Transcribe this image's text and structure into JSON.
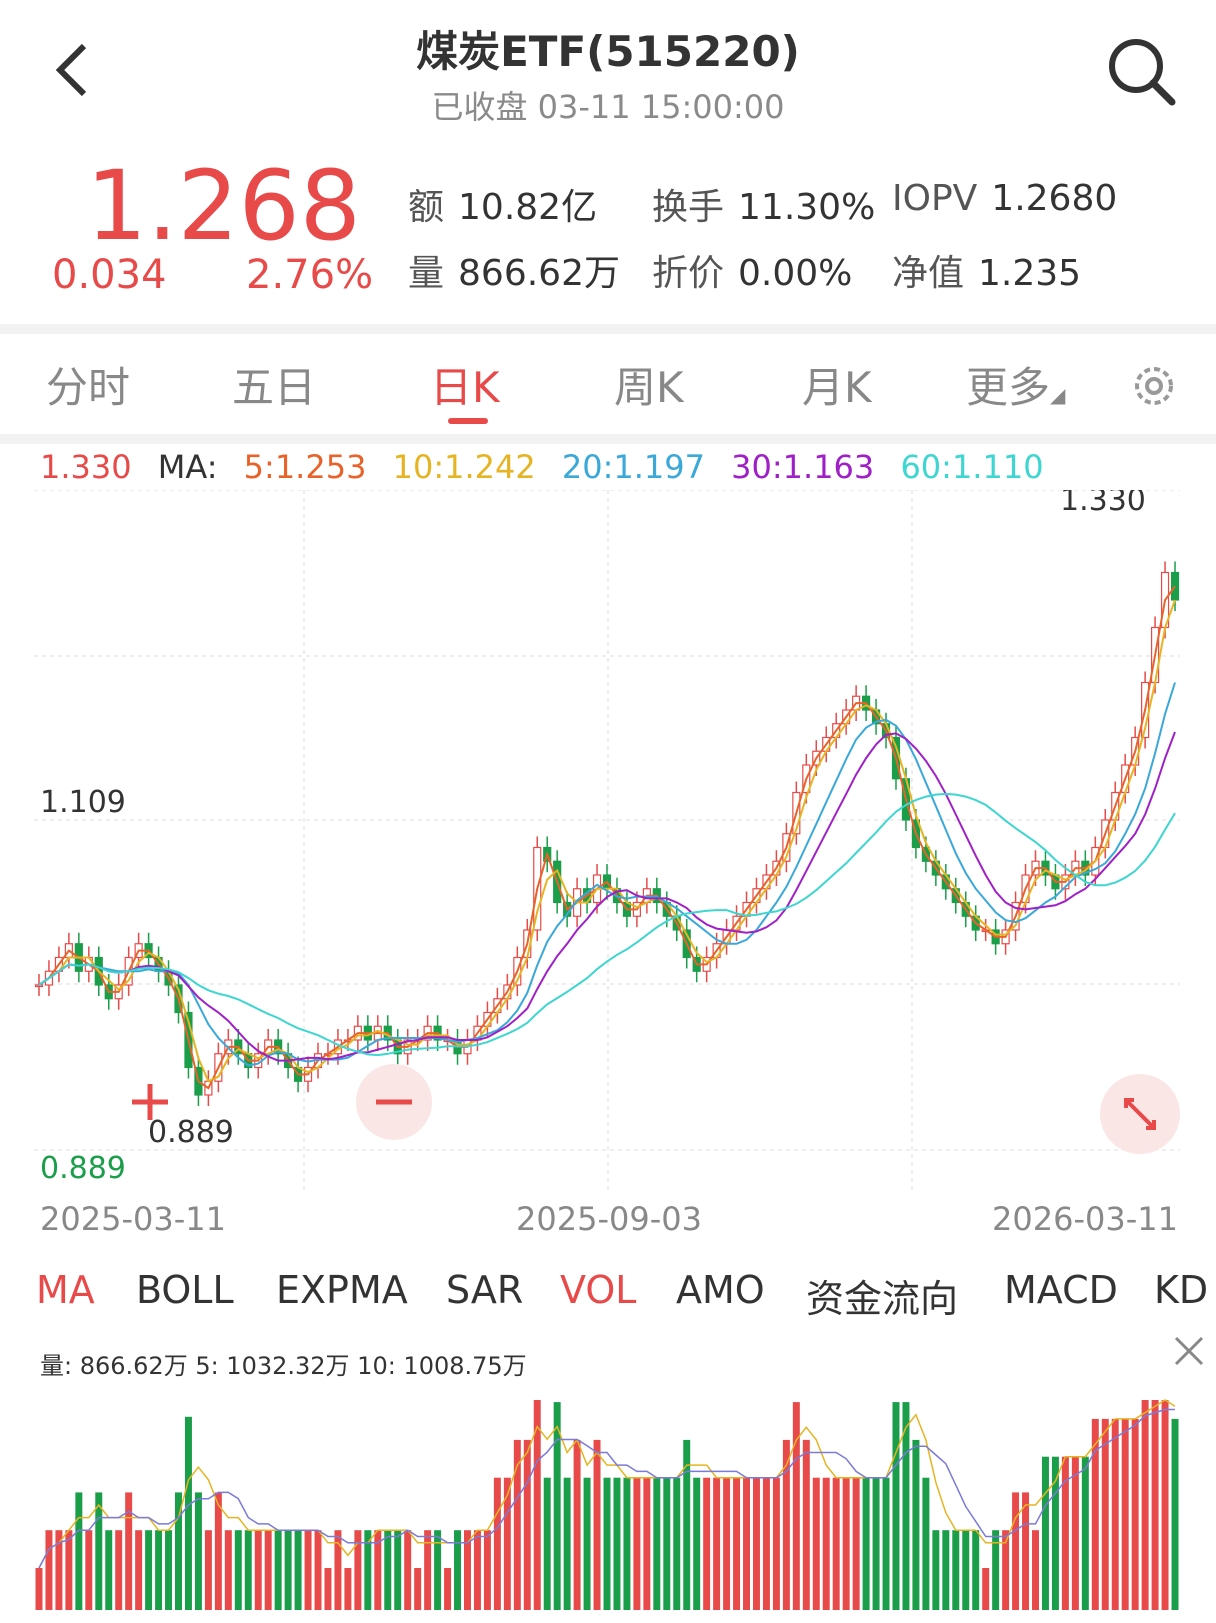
{
  "header": {
    "title": "煤炭ETF(515220)",
    "subtitle": "已收盘 03-11 15:00:00",
    "back_icon": "chevron-left-icon",
    "search_icon": "search-icon"
  },
  "quote": {
    "price": "1.268",
    "change": "0.034",
    "change_pct": "2.76%",
    "stats": [
      {
        "label": "额",
        "value": "10.82亿"
      },
      {
        "label": "换手",
        "value": "11.30%"
      },
      {
        "label": "IOPV",
        "value": "1.2680"
      },
      {
        "label": "量",
        "value": "866.62万"
      },
      {
        "label": "折价",
        "value": "0.00%"
      },
      {
        "label": "净值",
        "value": "1.235"
      }
    ]
  },
  "tabs": [
    {
      "label": "分时",
      "active": false
    },
    {
      "label": "五日",
      "active": false
    },
    {
      "label": "日K",
      "active": true
    },
    {
      "label": "周K",
      "active": false
    },
    {
      "label": "月K",
      "active": false
    },
    {
      "label": "更多",
      "active": false
    }
  ],
  "ma_legend": {
    "top_price": "1.330",
    "label": "MA:",
    "items": [
      {
        "text": "5:1.253",
        "color": "#e8632a"
      },
      {
        "text": "10:1.242",
        "color": "#e6b422"
      },
      {
        "text": "20:1.197",
        "color": "#3aa8d8"
      },
      {
        "text": "30:1.163",
        "color": "#a020c8"
      },
      {
        "text": "60:1.110",
        "color": "#3dd6d0"
      }
    ]
  },
  "indicator_tabs": [
    {
      "label": "MA",
      "active": true
    },
    {
      "label": "BOLL",
      "active": false
    },
    {
      "label": "EXPMA",
      "active": false
    },
    {
      "label": "SAR",
      "active": false
    },
    {
      "label": "VOL",
      "active": true
    },
    {
      "label": "AMO",
      "active": false
    },
    {
      "label": "资金流向",
      "active": false
    },
    {
      "label": "MACD",
      "active": false
    },
    {
      "label": "KD",
      "active": false
    }
  ],
  "volume_legend": "量: 866.62万  5: 1032.32万  10: 1008.75万",
  "colors": {
    "up": "#e84a4a",
    "down": "#1a9e4a"
  },
  "chart_data": {
    "type": "candlestick",
    "title": "",
    "y_axis_labels": [
      "1.109"
    ],
    "price_range": [
      0.889,
      1.33
    ],
    "high_label": "1.330",
    "low_label": "0.889",
    "x_tick_labels": [
      "2025-03-11",
      "2025-09-03",
      "2026-03-11"
    ],
    "close_series": [
      0.98,
      0.99,
      1.0,
      1.01,
      0.99,
      1.0,
      0.98,
      0.97,
      0.98,
      1.0,
      1.01,
      1.0,
      0.99,
      0.98,
      0.96,
      0.92,
      0.9,
      0.91,
      0.93,
      0.94,
      0.93,
      0.92,
      0.93,
      0.94,
      0.93,
      0.92,
      0.91,
      0.92,
      0.93,
      0.93,
      0.94,
      0.94,
      0.95,
      0.94,
      0.95,
      0.94,
      0.93,
      0.94,
      0.94,
      0.95,
      0.94,
      0.94,
      0.93,
      0.94,
      0.95,
      0.96,
      0.97,
      0.98,
      1.0,
      1.02,
      1.08,
      1.07,
      1.04,
      1.03,
      1.05,
      1.04,
      1.06,
      1.05,
      1.04,
      1.03,
      1.04,
      1.05,
      1.04,
      1.03,
      1.02,
      1.0,
      0.99,
      1.0,
      1.01,
      1.02,
      1.03,
      1.04,
      1.05,
      1.06,
      1.07,
      1.09,
      1.12,
      1.14,
      1.15,
      1.16,
      1.17,
      1.18,
      1.19,
      1.18,
      1.17,
      1.16,
      1.13,
      1.1,
      1.08,
      1.07,
      1.06,
      1.05,
      1.04,
      1.03,
      1.02,
      1.02,
      1.01,
      1.02,
      1.04,
      1.06,
      1.07,
      1.06,
      1.05,
      1.06,
      1.07,
      1.06,
      1.08,
      1.1,
      1.12,
      1.14,
      1.16,
      1.2,
      1.24,
      1.28,
      1.26
    ],
    "ma_series": [
      {
        "name": "5",
        "color": "#e8632a"
      },
      {
        "name": "10",
        "color": "#e6b422"
      },
      {
        "name": "20",
        "color": "#3aa8d8"
      },
      {
        "name": "30",
        "color": "#a020c8"
      },
      {
        "name": "60",
        "color": "#3dd6d0"
      }
    ]
  }
}
